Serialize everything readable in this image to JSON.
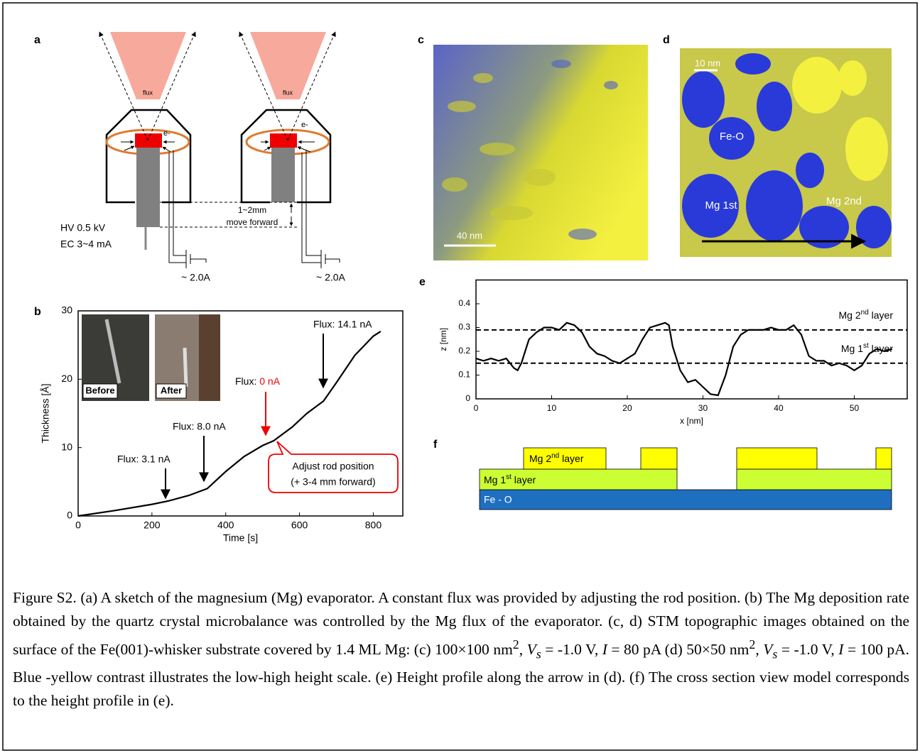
{
  "panel_labels": [
    "a",
    "b",
    "c",
    "d",
    "e",
    "f"
  ],
  "sketch": {
    "flux_left": "flux",
    "flux_right": "flux",
    "electron_left": "e-",
    "electron_right": "e-",
    "hv": "HV  0.5 kV",
    "ec": "EC  3~4 mA",
    "move_distance": "1~2mm",
    "move_text": "move forward",
    "current_left": "~ 2.0A",
    "current_right": "~ 2.0A"
  },
  "images": {
    "c_scale": "40 nm",
    "d_scale": "10 nm",
    "d_labels": [
      "Fe-O",
      "Mg 1st",
      "Mg 2nd"
    ]
  },
  "chart_data": [
    {
      "type": "line",
      "x_label": "Time [s]",
      "y_label": "Thickness [Å]",
      "xlim": [
        0,
        880
      ],
      "ylim": [
        0,
        30
      ],
      "xticks": [
        0,
        200,
        400,
        600,
        800
      ],
      "yticks": [
        0,
        10,
        20,
        30
      ],
      "x": [
        0,
        100,
        200,
        245,
        300,
        350,
        400,
        450,
        500,
        530,
        580,
        620,
        665,
        700,
        750,
        800,
        820
      ],
      "series": [
        {
          "color": "#000000",
          "values": [
            0,
            0.8,
            1.7,
            2.2,
            3,
            4,
            6.5,
            8.7,
            10.3,
            11,
            13,
            15,
            16.8,
            19.5,
            23.5,
            26.3,
            27
          ]
        }
      ],
      "annotations": [
        "Flux: 3.1 nA",
        "Flux: 8.0 nA",
        "Flux: ",
        "0 nA",
        "Flux: 14.1 nA",
        "Adjust rod position",
        "(+ 3-4 mm forward)"
      ],
      "photo_labels": [
        "Before",
        "After"
      ]
    },
    {
      "type": "line",
      "x_label": "x [nm]",
      "y_label": "z [nm]",
      "xlim": [
        0,
        57
      ],
      "ylim": [
        0,
        0.5
      ],
      "xticks": [
        0,
        10,
        20,
        30,
        40,
        50
      ],
      "yticks": [
        0,
        0.1,
        0.2,
        0.3,
        0.4
      ],
      "x": [
        0,
        1,
        2,
        3,
        4,
        5,
        5.5,
        6,
        7,
        8,
        9,
        10,
        11,
        12,
        13,
        14,
        15,
        16,
        17,
        18,
        19,
        20,
        21,
        22,
        23,
        24,
        25,
        25.5,
        26,
        27,
        28,
        29,
        30,
        31,
        32,
        33,
        34,
        35,
        36,
        37,
        38,
        39,
        40,
        41,
        42,
        43,
        44,
        45,
        46,
        47,
        48,
        49,
        50,
        51,
        52,
        53,
        54,
        55
      ],
      "series": [
        {
          "color": "#000000",
          "values": [
            0.17,
            0.16,
            0.17,
            0.16,
            0.17,
            0.13,
            0.12,
            0.15,
            0.25,
            0.28,
            0.3,
            0.3,
            0.29,
            0.32,
            0.31,
            0.28,
            0.22,
            0.19,
            0.18,
            0.16,
            0.15,
            0.17,
            0.19,
            0.25,
            0.3,
            0.31,
            0.32,
            0.31,
            0.22,
            0.12,
            0.07,
            0.08,
            0.05,
            0.02,
            0.015,
            0.1,
            0.22,
            0.27,
            0.29,
            0.29,
            0.29,
            0.3,
            0.29,
            0.29,
            0.31,
            0.27,
            0.18,
            0.16,
            0.16,
            0.14,
            0.15,
            0.14,
            0.12,
            0.14,
            0.19,
            0.21,
            0.2,
            0.21
          ]
        }
      ],
      "reference_lines": [
        {
          "value": 0.29,
          "label": "Mg 2",
          "sup": "nd",
          "suffix": " layer"
        },
        {
          "value": 0.15,
          "label": "Mg 1",
          "sup": "st",
          "suffix": " layer"
        }
      ]
    }
  ],
  "model": {
    "layer2": [
      "Mg 2",
      "nd",
      " layer"
    ],
    "layer1": [
      "Mg 1",
      "st",
      " layer"
    ],
    "base": "Fe - O"
  },
  "caption": [
    "Figure S2. (a) A sketch of the magnesium (Mg) evaporator. A constant flux was provided by adjusting the rod position. (b) The Mg deposition rate obtained by the quartz crystal microbalance was controlled by the Mg flux of the evaporator.  (c, d) STM topographic images obtained on the surface of the Fe(001)-whisker substrate covered by 1.4 ML Mg: (c) 100×100 nm",
    "2",
    ", ",
    "V",
    "s",
    " = -1.0 V, ",
    "I",
    " = 80 pA  (d) 50×50 nm",
    "2",
    ", ",
    "V",
    "s",
    " = -1.0 V, ",
    "I",
    " = 100 pA. Blue -yellow contrast illustrates the low-high height scale. (e) Height profile along the arrow in (d). (f) The cross section view model corresponds to the height profile in (e)."
  ]
}
